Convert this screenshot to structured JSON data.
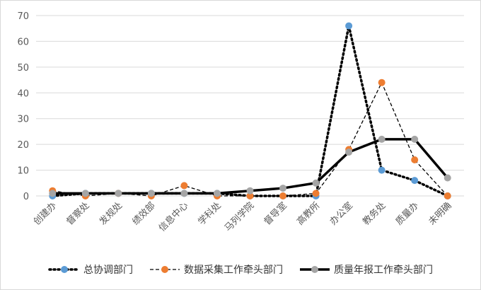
{
  "chart_data": {
    "type": "line",
    "categories": [
      "创建办",
      "督察处",
      "发规处",
      "绩效部",
      "信息中心",
      "学科处",
      "马列学院",
      "督导室",
      "高教所",
      "办公室",
      "教务处",
      "质量办",
      "未明确"
    ],
    "ylim": [
      0,
      70
    ],
    "yticks": [
      0,
      10,
      20,
      30,
      40,
      50,
      60,
      70
    ],
    "grid": true,
    "legend_position": "bottom",
    "series": [
      {
        "name": "总协调部门",
        "values": [
          0,
          1,
          1,
          1,
          1,
          1,
          0,
          0,
          0,
          66,
          10,
          6,
          0
        ],
        "color": "#5b9bd5",
        "line": "dotted"
      },
      {
        "name": "数据采集工作牵头部门",
        "values": [
          2,
          0,
          1,
          0,
          4,
          0,
          0,
          0,
          1,
          18,
          44,
          14,
          0
        ],
        "color": "#ed7d31",
        "line": "dashed"
      },
      {
        "name": "质量年报工作牵头部门",
        "values": [
          1,
          1,
          1,
          1,
          1,
          1,
          2,
          3,
          5,
          17,
          22,
          22,
          7
        ],
        "color": "#a5a5a5",
        "line": "solid"
      }
    ]
  }
}
